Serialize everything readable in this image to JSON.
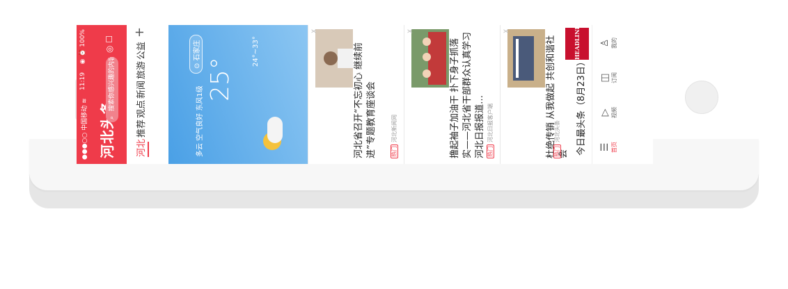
{
  "status": {
    "carrier": "●●●○○ 中国移动 ≋",
    "time": "11:19",
    "battery": "◉ ⏰ 100%"
  },
  "header": {
    "brand": "河北头条",
    "search_placeholder": "搜索你感兴趣的内容"
  },
  "tabs": [
    "河北",
    "推荐",
    "观点",
    "新闻",
    "旅游",
    "公益"
  ],
  "weather": {
    "temp": "25°",
    "location": "石家庄",
    "desc": "多云 空气良好 东风1级",
    "range": "24°~33°"
  },
  "news": [
    {
      "title": "河北省召开“不忘初心 继续前进”专题教育座谈会",
      "source": "河北新闻网",
      "tag": "热门"
    },
    {
      "title": "撸起袖子加油干 扑下身子抓落实——河北省干部群众认真学习河北日报报道…",
      "source": "河北日报客户端",
      "tag": "热门"
    },
    {
      "title": "杜绝传销 从我做起 共创和谐社会",
      "source": "河北头条",
      "tag": "热门"
    }
  ],
  "today": {
    "title": "今日最头条（8月23日）",
    "logo": "HEADLINE 今日头条"
  },
  "nav": [
    {
      "label": "首页",
      "icon": "home-icon"
    },
    {
      "label": "视频",
      "icon": "play-icon"
    },
    {
      "label": "订阅",
      "icon": "subscribe-icon"
    },
    {
      "label": "我的",
      "icon": "user-icon"
    }
  ],
  "close_label": "X"
}
